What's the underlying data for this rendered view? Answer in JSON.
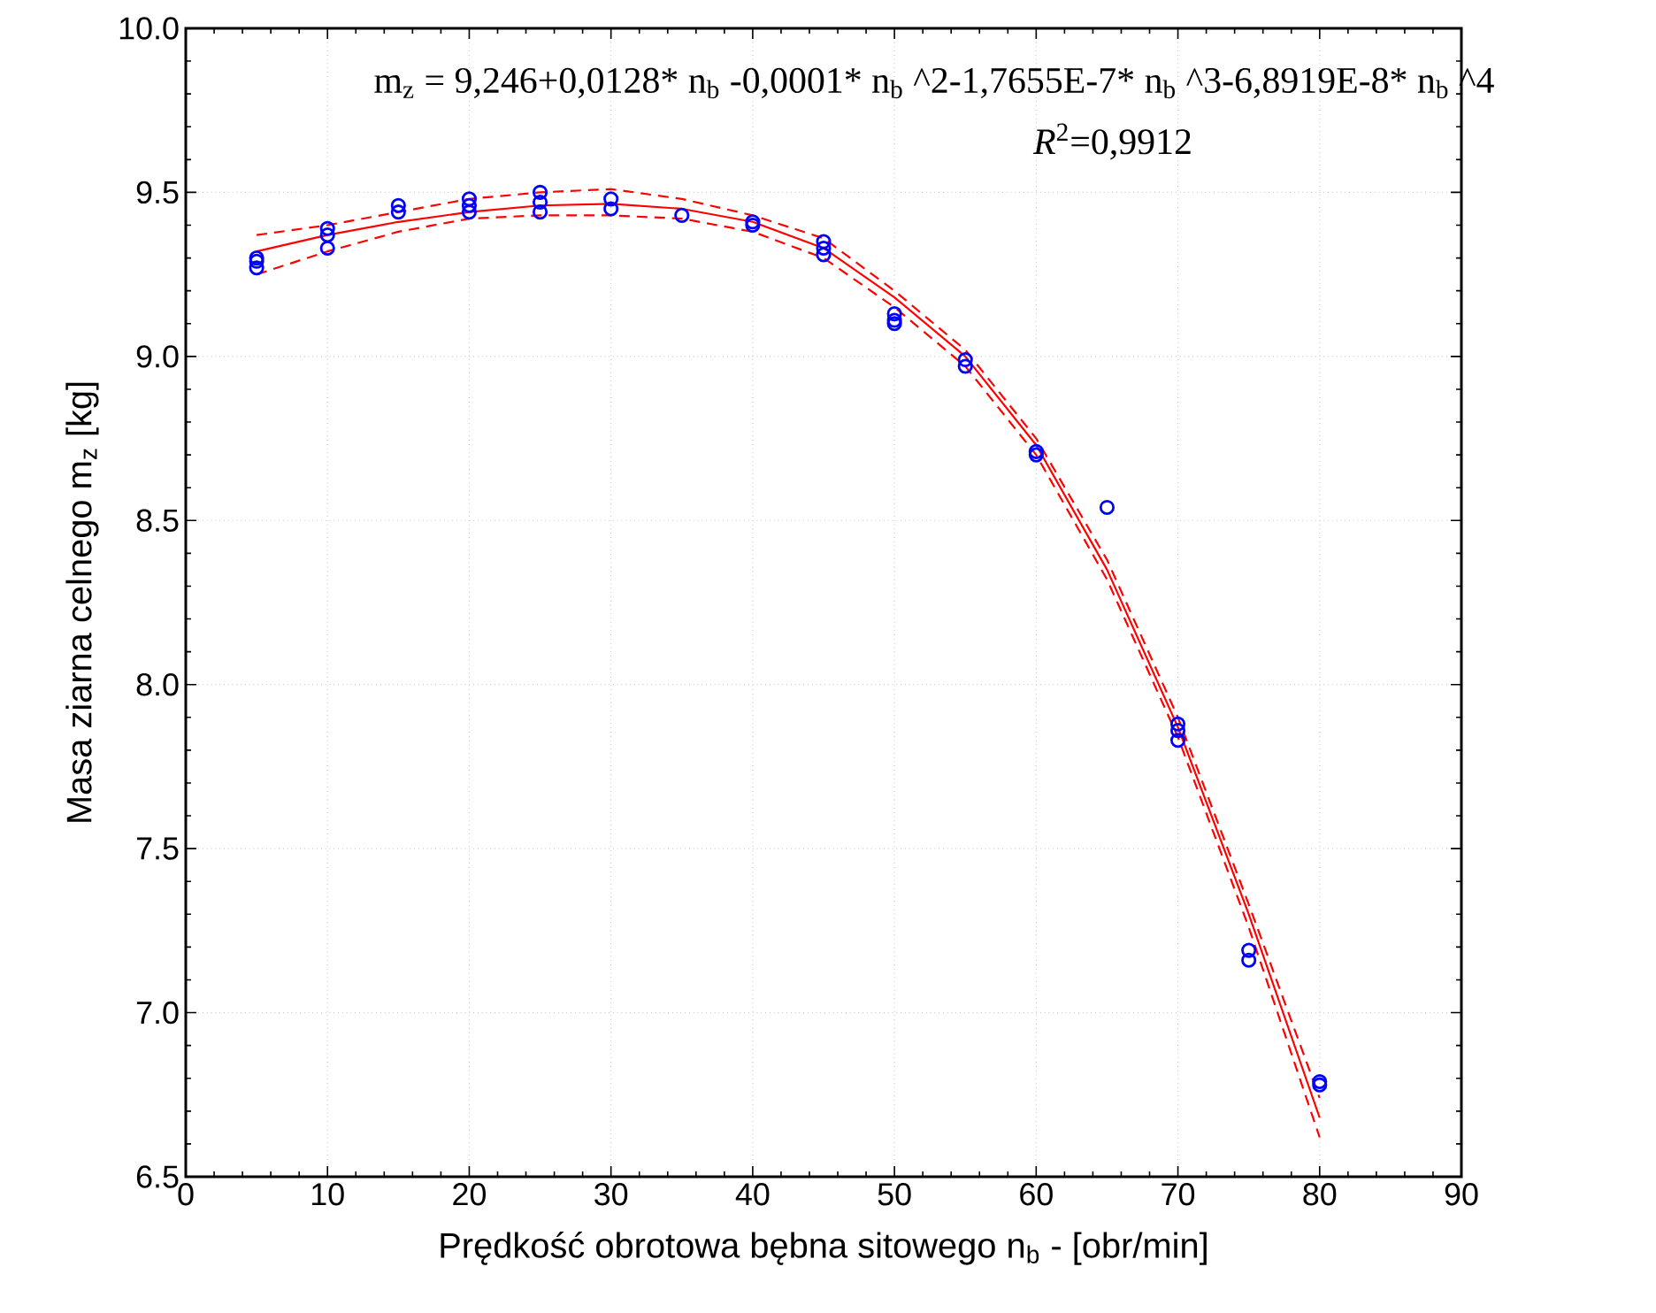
{
  "chart_data": {
    "type": "scatter",
    "xlabel": "Prędkość obrotowa bębna sitowego n$_{b}$ - [obr/min]",
    "ylabel": "Masa ziarna celnego m$_{z}$ [kg]",
    "annotations": [
      "m$_{z}$ = 9,246+0,0128* n$_{b}$ -0,0001* n$_{b}$ ^2-1,7655E-7* n$_{b}$ ^3-6,8919E-8* n$_{b}$ ^4",
      "*R*$^{2}$=0,9912"
    ],
    "xlim": [
      0,
      90
    ],
    "xticks": [
      0,
      10,
      20,
      30,
      40,
      50,
      60,
      70,
      80,
      90
    ],
    "ylim": [
      6.5,
      10.0
    ],
    "yticks": [
      6.5,
      {
        "value": 7.0,
        "label": "7.0"
      },
      7.5,
      {
        "value": 8.0,
        "label": "8.0"
      },
      8.5,
      {
        "value": 9.0,
        "label": "9.0"
      },
      9.5,
      {
        "value": 10.0,
        "label": "10.0"
      }
    ],
    "grid": true,
    "series": [
      {
        "marker": "circle",
        "color": "#0000ff",
        "x": [
          5,
          5,
          5,
          10,
          10,
          10,
          15,
          15,
          20,
          20,
          20,
          25,
          25,
          25,
          30,
          30,
          35,
          40,
          40,
          45,
          45,
          45,
          50,
          50,
          50,
          55,
          55,
          60,
          60,
          65,
          70,
          70,
          70,
          75,
          75,
          80,
          80
        ],
        "values": [
          9.3,
          9.27,
          9.29,
          9.39,
          9.37,
          9.33,
          9.46,
          9.44,
          9.48,
          9.46,
          9.44,
          9.5,
          9.47,
          9.44,
          9.48,
          9.45,
          9.43,
          9.41,
          9.4,
          9.35,
          9.33,
          9.31,
          9.13,
          9.11,
          9.1,
          8.99,
          8.97,
          8.71,
          8.7,
          8.54,
          7.88,
          7.86,
          7.83,
          7.19,
          7.16,
          6.79,
          6.78
        ]
      },
      {
        "type": "line",
        "marker": "none",
        "line_style": "solid",
        "color": "#ff0000",
        "x": [
          5,
          10,
          15,
          20,
          25,
          30,
          35,
          40,
          45,
          50,
          55,
          60,
          65,
          70,
          75,
          80
        ],
        "values": [
          9.32,
          9.37,
          9.41,
          9.44,
          9.46,
          9.465,
          9.45,
          9.41,
          9.33,
          9.18,
          9.0,
          8.73,
          8.35,
          7.87,
          7.3,
          6.68
        ]
      },
      {
        "type": "line",
        "marker": "none",
        "line_style": "dashed",
        "color": "#ff0000",
        "x": [
          5,
          10,
          15,
          20,
          25,
          30,
          35,
          40,
          45,
          50,
          55,
          60,
          65,
          70,
          75,
          80
        ],
        "values": [
          9.37,
          9.4,
          9.44,
          9.48,
          9.5,
          9.51,
          9.48,
          9.43,
          9.36,
          9.2,
          9.02,
          8.75,
          8.38,
          7.9,
          7.33,
          6.74
        ]
      },
      {
        "type": "line",
        "marker": "none",
        "line_style": "dashed",
        "color": "#ff0000",
        "x": [
          5,
          10,
          15,
          20,
          25,
          30,
          35,
          40,
          45,
          50,
          55,
          60,
          65,
          70,
          75,
          80
        ],
        "values": [
          9.25,
          9.32,
          9.38,
          9.42,
          9.43,
          9.43,
          9.42,
          9.38,
          9.3,
          9.15,
          8.97,
          8.7,
          8.32,
          7.84,
          7.26,
          6.62
        ]
      }
    ]
  }
}
